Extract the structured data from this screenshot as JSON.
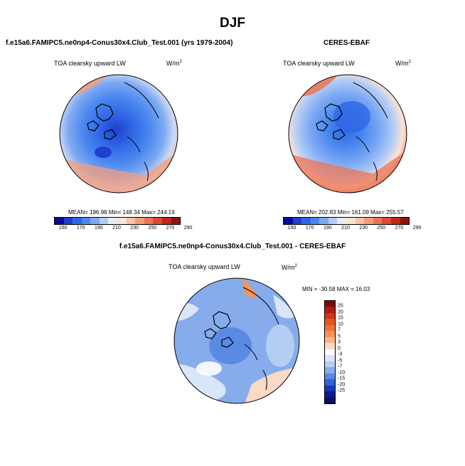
{
  "figure": {
    "title": "DJF",
    "panel_left_title": "f.e15a6.FAMIPC5.ne0np4-Conus30x4.Club_Test.001 (yrs 1979-2004)",
    "panel_right_title": "CERES-EBAF",
    "panel_diff_title": "f.e15a6.FAMIPC5.ne0np4-Conus30x4.Club_Test.001 - CERES-EBAF"
  },
  "chart_data": [
    {
      "type": "heatmap",
      "projection": "north-polar-stereographic",
      "title": "f.e15a6.FAMIPC5.ne0np4-Conus30x4.Club_Test.001 (yrs 1979-2004)",
      "variable": "TOA clearsky upward LW",
      "units_base": "W/m",
      "units_exp": "2",
      "stats_text": "MEAN= 196.98  Min= 148.34  Max= 244.19",
      "mean": 196.98,
      "min": 148.34,
      "max": 244.19,
      "colorbar_ticks": [
        "150",
        "170",
        "190",
        "210",
        "230",
        "250",
        "270",
        "290"
      ],
      "colorbar_colors": [
        "#0a0a9a",
        "#1f3fcf",
        "#2f66e6",
        "#4a88ef",
        "#7eaaf3",
        "#b4cdf6",
        "#e6edf6",
        "#fbe3d4",
        "#f7c2a6",
        "#f39c7b",
        "#eb7455",
        "#de4a32",
        "#c1271b",
        "#8e1410"
      ]
    },
    {
      "type": "heatmap",
      "projection": "north-polar-stereographic",
      "title": "CERES-EBAF",
      "variable": "TOA clearsky upward LW",
      "units_base": "W/m",
      "units_exp": "2",
      "stats_text": "MEAN= 202.83  Min= 161.09  Max= 255.57",
      "mean": 202.83,
      "min": 161.09,
      "max": 255.57,
      "colorbar_ticks": [
        "150",
        "170",
        "190",
        "210",
        "230",
        "250",
        "270",
        "290"
      ],
      "colorbar_colors": [
        "#0a0a9a",
        "#1f3fcf",
        "#2f66e6",
        "#4a88ef",
        "#7eaaf3",
        "#b4cdf6",
        "#e6edf6",
        "#fbe3d4",
        "#f7c2a6",
        "#f39c7b",
        "#eb7455",
        "#de4a32",
        "#c1271b",
        "#8e1410"
      ]
    },
    {
      "type": "heatmap",
      "projection": "north-polar-stereographic",
      "title": "f.e15a6.FAMIPC5.ne0np4-Conus30x4.Club_Test.001 - CERES-EBAF",
      "variable": "TOA clearsky upward LW",
      "units_base": "W/m",
      "units_exp": "2",
      "stats_text": "MIN = -30.58 MAX =  16.03",
      "min": -30.58,
      "max": 16.03,
      "colorbar_ticks": [
        "25",
        "20",
        "15",
        "10",
        "7",
        "5",
        "3",
        "0",
        "-3",
        "-5",
        "-7",
        "-10",
        "-15",
        "-20",
        "-25"
      ],
      "colorbar_colors": [
        "#7a0a0a",
        "#b01a12",
        "#d2321a",
        "#e9531f",
        "#f27034",
        "#f6925a",
        "#f9b58c",
        "#fbd9c4",
        "#ffffff",
        "#d9e6f7",
        "#b3cdf3",
        "#87acec",
        "#5a8ae4",
        "#2f63d6",
        "#1738b3",
        "#0b1c8f",
        "#06105e"
      ]
    }
  ]
}
